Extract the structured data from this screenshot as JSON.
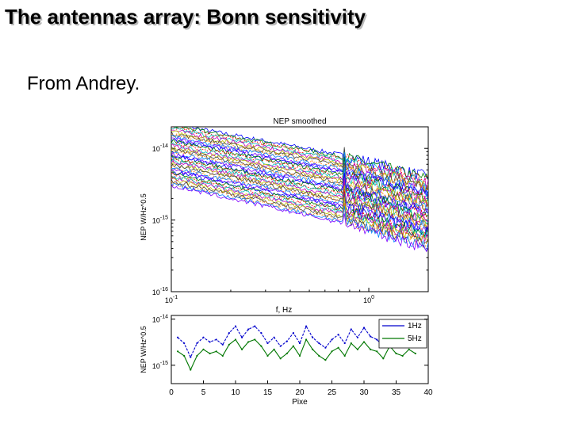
{
  "slide": {
    "title": "The antennas array: Bonn sensitivity",
    "bullet": "From Andrey."
  },
  "chart_data": [
    {
      "type": "line",
      "title": "NEP smoothed",
      "xlabel": "f, Hz",
      "ylabel": "NEP W/Hz^0.5",
      "xscale": "log",
      "yscale": "log",
      "xlim": [
        0.1,
        2.0
      ],
      "ylim": [
        1e-16,
        2e-14
      ],
      "xticks": [
        "10^-1",
        "10^0"
      ],
      "yticks": [
        "10^-14",
        "10^-15",
        "10^-16"
      ],
      "grid": false,
      "series_count": 40,
      "series_note": "many pixel NEP curves, values decreasing with frequency, narrow spike near 0.75 Hz",
      "envelope": {
        "x": [
          0.1,
          0.75,
          2.0
        ],
        "upper": [
          2.2e-14,
          8e-15,
          4e-15
        ],
        "lower": [
          3e-15,
          9e-16,
          4e-16
        ]
      }
    },
    {
      "type": "line",
      "xlabel": "Pixe",
      "ylabel": "NEP W/Hz^0.5",
      "yscale": "log",
      "xlim": [
        0,
        40
      ],
      "xticks": [
        "0",
        "5",
        "10",
        "15",
        "20",
        "25",
        "30",
        "35",
        "40"
      ],
      "yticks": [
        "10^-14",
        "10^-15"
      ],
      "legend_position": "top-right",
      "series": [
        {
          "name": "1Hz",
          "color": "#0000cc",
          "x": [
            1,
            2,
            3,
            4,
            5,
            6,
            7,
            8,
            9,
            10,
            11,
            12,
            13,
            14,
            15,
            16,
            17,
            18,
            19,
            20,
            21,
            22,
            23,
            24,
            25,
            26,
            27,
            28,
            29,
            30,
            31,
            32,
            33,
            34,
            35,
            36,
            37,
            38
          ],
          "values": [
            4e-15,
            3e-15,
            1.5e-15,
            3e-15,
            4e-15,
            3.2e-15,
            3.6e-15,
            2.8e-15,
            5e-15,
            7e-15,
            4e-15,
            6e-15,
            7e-15,
            5e-15,
            3e-15,
            4e-15,
            2.6e-15,
            3.3e-15,
            5e-15,
            3e-15,
            7e-15,
            4e-15,
            3e-15,
            2.4e-15,
            3.6e-15,
            4.6e-15,
            3e-15,
            6e-15,
            4e-15,
            6.5e-15,
            4.2e-15,
            3.6e-15,
            2.6e-15,
            5e-15,
            3.2e-15,
            3e-15,
            4e-15,
            3.4e-15
          ]
        },
        {
          "name": "5Hz",
          "color": "#007700",
          "x": [
            1,
            2,
            3,
            4,
            5,
            6,
            7,
            8,
            9,
            10,
            11,
            12,
            13,
            14,
            15,
            16,
            17,
            18,
            19,
            20,
            21,
            22,
            23,
            24,
            25,
            26,
            27,
            28,
            29,
            30,
            31,
            32,
            33,
            34,
            35,
            36,
            37,
            38
          ],
          "values": [
            2e-15,
            1.6e-15,
            8e-16,
            1.6e-15,
            2.2e-15,
            1.8e-15,
            2e-15,
            1.6e-15,
            2.8e-15,
            3.6e-15,
            2.2e-15,
            3.2e-15,
            3.6e-15,
            2.6e-15,
            1.6e-15,
            2.2e-15,
            1.4e-15,
            1.8e-15,
            2.6e-15,
            1.6e-15,
            3.6e-15,
            2.2e-15,
            1.6e-15,
            1.3e-15,
            2e-15,
            2.4e-15,
            1.6e-15,
            3e-15,
            2.2e-15,
            3.2e-15,
            2.2e-15,
            2e-15,
            1.4e-15,
            2.6e-15,
            1.8e-15,
            1.6e-15,
            2.2e-15,
            1.8e-15
          ]
        }
      ]
    }
  ]
}
